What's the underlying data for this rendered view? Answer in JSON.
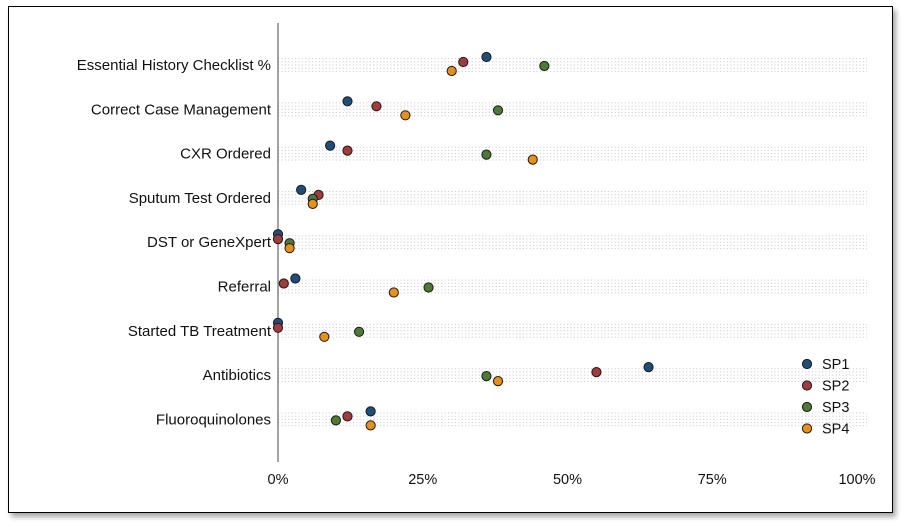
{
  "chart_data": {
    "type": "scatter",
    "categories": [
      "Essential History Checklist %",
      "Correct Case Management",
      "CXR Ordered",
      "Sputum Test Ordered",
      "DST or GeneXpert",
      "Referral",
      "Started TB Treatment",
      "Antibiotics",
      "Fluoroquinolones"
    ],
    "series": [
      {
        "name": "SP1",
        "color": "#1f4e79",
        "values": [
          36,
          12,
          9,
          4,
          0,
          3,
          0,
          64,
          16
        ]
      },
      {
        "name": "SP2",
        "color": "#a23b3b",
        "values": [
          32,
          17,
          12,
          7,
          0,
          1,
          0,
          55,
          12
        ]
      },
      {
        "name": "SP3",
        "color": "#4d7a37",
        "values": [
          46,
          38,
          36,
          6,
          2,
          26,
          14,
          36,
          10
        ]
      },
      {
        "name": "SP4",
        "color": "#e8901c",
        "values": [
          30,
          22,
          44,
          6,
          2,
          20,
          8,
          38,
          16
        ]
      }
    ],
    "xlim": [
      0,
      100
    ],
    "x_ticks": [
      "0%",
      "25%",
      "50%",
      "75%",
      "100%"
    ],
    "x_tick_values": [
      0,
      25,
      50,
      75,
      100
    ],
    "legend_position": "bottom-right",
    "grid": "dotted horizontal bands"
  }
}
